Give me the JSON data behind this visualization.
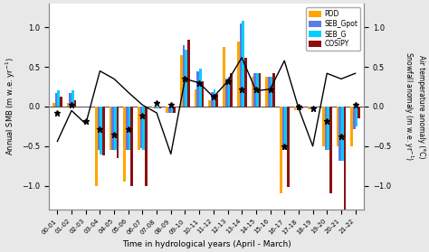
{
  "years": [
    "00-01",
    "01-02",
    "02-03",
    "03-04",
    "04-05",
    "05-06",
    "06-07",
    "07-08",
    "08-09",
    "09-10",
    "10-11",
    "11-12",
    "12-13",
    "13-14",
    "14-15",
    "15-16",
    "16-17",
    "17-18",
    "18-19",
    "19-20",
    "20-21",
    "21-22"
  ],
  "PDD": [
    0.04,
    0.04,
    0.0,
    -1.0,
    -0.55,
    -0.95,
    -0.55,
    -0.02,
    -0.08,
    0.65,
    0.22,
    0.08,
    0.75,
    0.82,
    0.38,
    0.38,
    -1.1,
    -0.05,
    -0.03,
    -0.5,
    -0.5,
    -0.5
  ],
  "SEB_Gpot": [
    0.17,
    0.17,
    0.0,
    -0.55,
    -0.55,
    -0.55,
    -0.52,
    -0.02,
    -0.08,
    0.78,
    0.45,
    0.18,
    0.35,
    1.05,
    0.42,
    0.38,
    -0.55,
    -0.02,
    -0.02,
    -0.55,
    -0.68,
    -0.28
  ],
  "SEB_G": [
    0.2,
    0.2,
    0.0,
    -0.6,
    -0.55,
    -0.55,
    -0.55,
    -0.02,
    -0.08,
    0.72,
    0.48,
    0.22,
    0.38,
    1.08,
    0.42,
    0.38,
    -0.55,
    -0.02,
    -0.02,
    -0.55,
    -0.68,
    -0.25
  ],
  "COSIPY": [
    0.12,
    0.08,
    0.0,
    -0.62,
    -0.65,
    -1.0,
    -1.0,
    -0.02,
    -0.08,
    0.85,
    0.32,
    0.16,
    0.42,
    0.62,
    0.42,
    0.42,
    -1.02,
    -0.02,
    0.0,
    -1.1,
    -1.3,
    -0.15
  ],
  "line": [
    -0.44,
    -0.05,
    -0.22,
    0.45,
    0.35,
    0.18,
    0.02,
    -0.08,
    -0.6,
    0.35,
    0.3,
    0.12,
    0.32,
    0.62,
    0.2,
    0.22,
    0.58,
    -0.02,
    -0.5,
    0.42,
    0.35,
    0.42
  ],
  "stars": [
    -0.08,
    0.02,
    -0.18,
    -0.28,
    -0.35,
    -0.28,
    -0.12,
    0.05,
    0.02,
    0.35,
    0.3,
    0.12,
    0.32,
    0.22,
    0.22,
    0.22,
    -0.5,
    0.0,
    -0.02,
    -0.18,
    -0.38,
    0.02
  ],
  "bar_colors": {
    "PDD": "#FFA500",
    "SEB_Gpot": "#5B7BE8",
    "SEB_G": "#00CFFF",
    "COSIPY": "#8B1010"
  },
  "bg_color": "#E8E8E8",
  "plot_bg_color": "#FFFFFF",
  "line_color": "#000000",
  "ylabel_left": "Annual SMB (m w.e. yr$^{-1}$)",
  "ylabel_right_top": "Air temperature anomaly (°C)",
  "ylabel_right_bot": "Snowfall anomaly (m w.e. yr$^{-1}$)",
  "xlabel": "Time in hydrological years (April - March)",
  "ylim": [
    -1.3,
    1.3
  ],
  "yticks": [
    -1.0,
    -0.5,
    0.0,
    0.5,
    1.0
  ],
  "bar_width": 0.17,
  "legend_labels": [
    "PDD",
    "SEB_Gpot",
    "SEB_G",
    "COSIPY"
  ]
}
